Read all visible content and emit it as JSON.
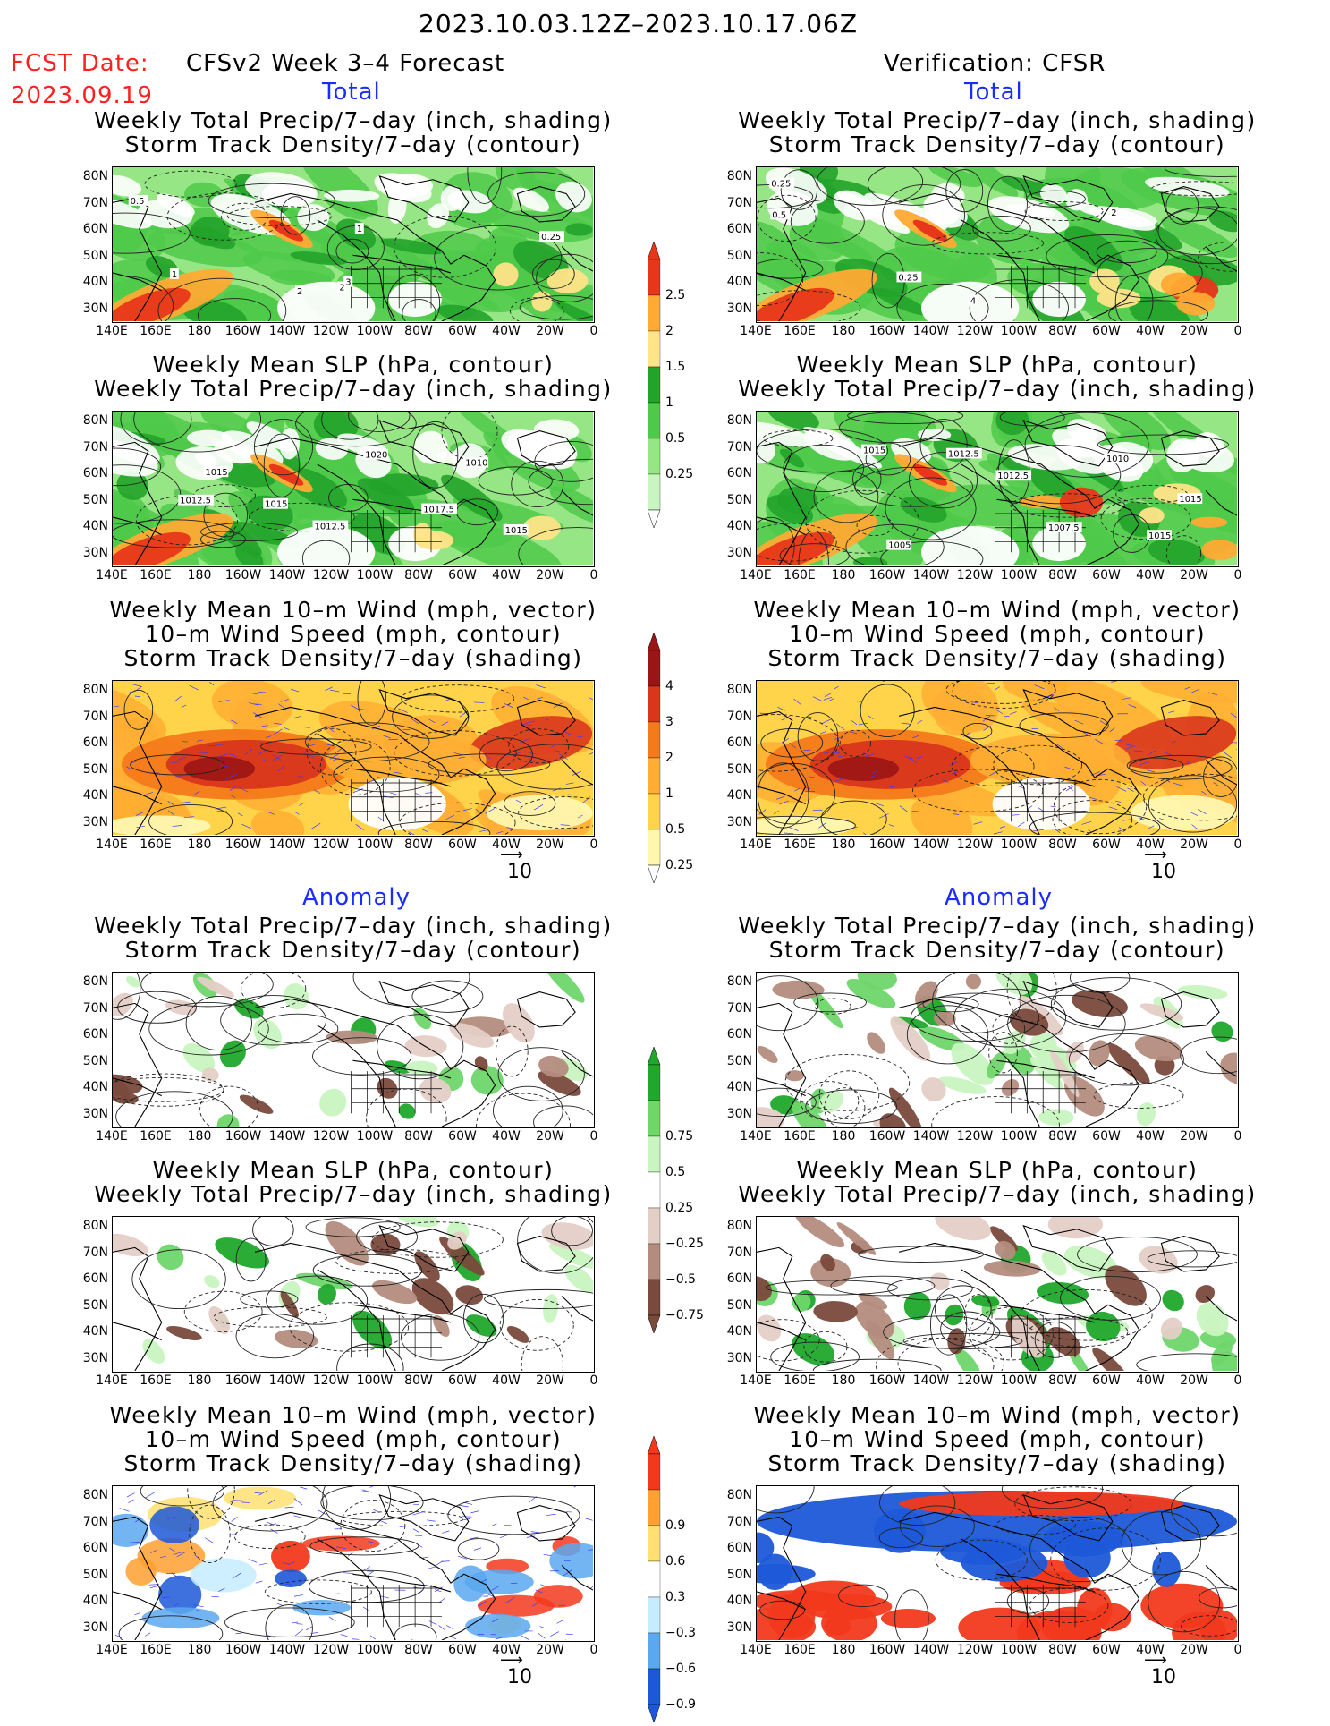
{
  "header": {
    "title": "2023.10.03.12Z–2023.10.17.06Z",
    "fcst_label": "FCST Date:",
    "fcst_date": "2023.09.19",
    "left_heading": "CFSv2 Week 3–4 Forecast",
    "right_heading": "Verification: CFSR",
    "total_label": "Total",
    "anomaly_label": "Anomaly"
  },
  "panels": {
    "precip_storm": [
      "Weekly Total Precip/7–day (inch, shading)",
      "Storm Track Density/7–day (contour)"
    ],
    "slp_precip": [
      "Weekly Mean SLP (hPa, contour)",
      "Weekly Total Precip/7–day (inch, shading)"
    ],
    "wind_storm": [
      "Weekly Mean 10–m Wind (mph, vector)",
      "10–m Wind Speed (mph, contour)",
      "Storm Track Density/7–day (shading)"
    ]
  },
  "axes": {
    "lat_ticks": [
      "80N",
      "70N",
      "60N",
      "50N",
      "40N",
      "30N"
    ],
    "lon_ticks": [
      "140E",
      "160E",
      "180",
      "160W",
      "140W",
      "120W",
      "100W",
      "80W",
      "60W",
      "40W",
      "20W",
      "0"
    ]
  },
  "vector_ref": "10",
  "colorbars": {
    "precip_total": [
      "2.5",
      "2",
      "1.5",
      "1",
      "0.5",
      "0.25"
    ],
    "storm_total": [
      "4",
      "3",
      "2",
      "1",
      "0.5",
      "0.25"
    ],
    "precip_anom": [
      "0.75",
      "0.5",
      "0.25",
      "−0.25",
      "−0.5",
      "−0.75"
    ],
    "storm_anom": [
      "0.9",
      "0.6",
      "0.3",
      "−0.3",
      "−0.6",
      "−0.9"
    ]
  },
  "contour_labels": {
    "fc_slp": [
      "1020",
      "1017.5",
      "1015",
      "1012.5",
      "1015",
      "1012.5",
      "1010",
      "1015"
    ],
    "vf_slp": [
      "1015",
      "1007.5",
      "1010",
      "1012.5",
      "1015",
      "1005",
      "1012.5",
      "1015"
    ],
    "fc_storm": [
      "2",
      "3",
      "1",
      "0.5",
      "0.25",
      "1",
      "2"
    ],
    "vf_storm": [
      "2",
      "4",
      "0.25",
      "0.25",
      "0.5"
    ]
  },
  "colors": {
    "precip": [
      "#c8f5c0",
      "#96e686",
      "#4fc94a",
      "#22a32a",
      "#ffe488",
      "#ffaa33",
      "#e8361a"
    ],
    "storm_total": [
      "#fff7b0",
      "#ffd34a",
      "#ffae33",
      "#f47a1a",
      "#d9361c",
      "#9a1515"
    ],
    "anom_pos": [
      "#c8f5c0",
      "#6fd66a",
      "#1fa82b"
    ],
    "anom_neg": [
      "#e4cfc6",
      "#b48c7e",
      "#7a4a3c"
    ],
    "storm_anom_pos": [
      "#ffe070",
      "#ffa030",
      "#f2391c"
    ],
    "storm_anom_neg": [
      "#c6ecff",
      "#5aa8f0",
      "#1c58d8"
    ]
  }
}
